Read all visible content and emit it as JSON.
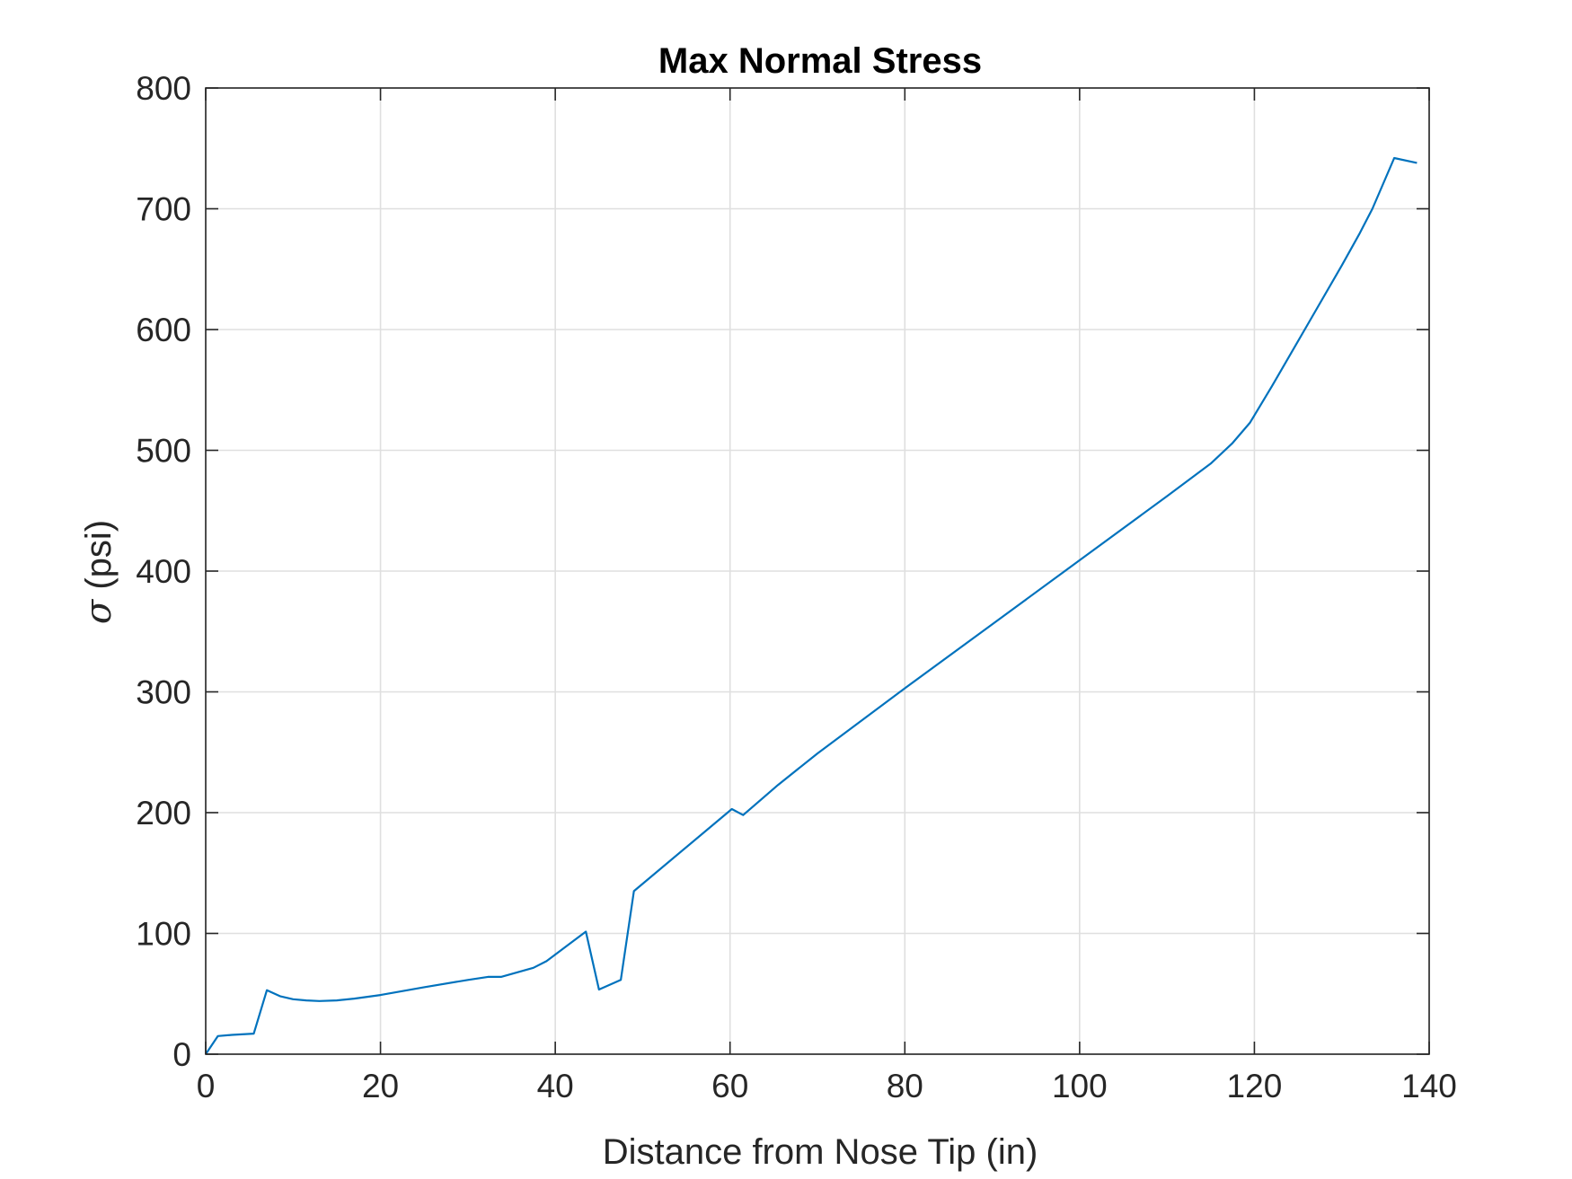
{
  "chart_data": {
    "type": "line",
    "title": "Max Normal Stress",
    "xlabel": "Distance from Nose Tip (in)",
    "ylabel_symbol": "σ",
    "ylabel_text": " (psi)",
    "xlim": [
      0,
      140
    ],
    "ylim": [
      0,
      800
    ],
    "xticks": [
      0,
      20,
      40,
      60,
      80,
      100,
      120,
      140
    ],
    "yticks": [
      0,
      100,
      200,
      300,
      400,
      500,
      600,
      700,
      800
    ],
    "grid": true,
    "legend": "none",
    "series": [
      {
        "color": "#0072BD",
        "x": [
          0,
          1.4,
          3,
          5.5,
          7,
          8.5,
          10,
          11.5,
          13,
          15,
          17,
          20,
          25,
          30,
          32.3,
          33.8,
          37.5,
          39,
          43.5,
          45,
          47.5,
          49,
          60.2,
          61.5,
          65.5,
          70,
          80,
          90,
          100,
          110,
          115,
          117.5,
          119.5,
          122,
          126,
          130,
          132,
          133.5,
          136,
          138.6
        ],
        "y": [
          0,
          15,
          16,
          17,
          53,
          48,
          45.5,
          44.5,
          44,
          44.5,
          46,
          49,
          55.5,
          61.5,
          64,
          64,
          71.5,
          77,
          101.5,
          53.5,
          61.5,
          135,
          203,
          198,
          223,
          249,
          303,
          356,
          409,
          462,
          489,
          506,
          523,
          553,
          603,
          653,
          679,
          700,
          742,
          738
        ]
      }
    ]
  }
}
